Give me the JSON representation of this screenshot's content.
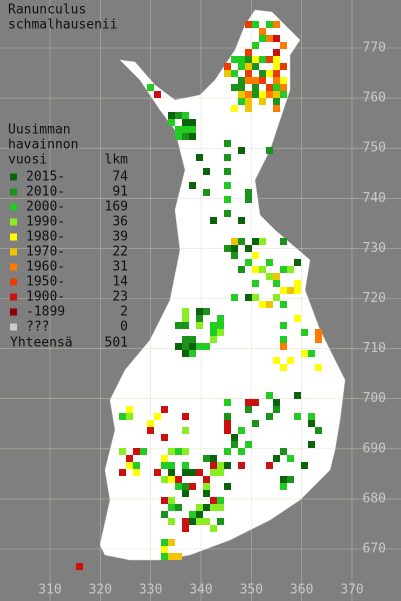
{
  "title": [
    "Ranunculus",
    "schmalhausenii"
  ],
  "legend": {
    "heading": [
      "Uusimman",
      "havainnon",
      "vuosi"
    ],
    "count_heading": "lkm",
    "items": [
      {
        "label": "2015-",
        "count": 74,
        "color": "#0b640b"
      },
      {
        "label": "2010-",
        "count": 91,
        "color": "#1b931b"
      },
      {
        "label": "2000-",
        "count": 169,
        "color": "#22cc22"
      },
      {
        "label": "1990-",
        "count": 36,
        "color": "#88ee22"
      },
      {
        "label": "1980-",
        "count": 39,
        "color": "#ffff00"
      },
      {
        "label": "1970-",
        "count": 22,
        "color": "#f0c400"
      },
      {
        "label": "1960-",
        "count": 31,
        "color": "#ff7a00"
      },
      {
        "label": "1950-",
        "count": 14,
        "color": "#e83c00"
      },
      {
        "label": "1900-",
        "count": 23,
        "color": "#cc1010"
      },
      {
        "label": "-1899",
        "count": 2,
        "color": "#8b0000"
      },
      {
        "label": "???",
        "count": 0,
        "color": "#cccccc"
      }
    ],
    "total_label": "Yhteensä",
    "total": 501
  },
  "map": {
    "xticks": [
      310,
      320,
      330,
      340,
      350,
      360,
      370
    ],
    "yticks": [
      670,
      680,
      690,
      700,
      710,
      720,
      730,
      740,
      750,
      760,
      770
    ]
  }
}
